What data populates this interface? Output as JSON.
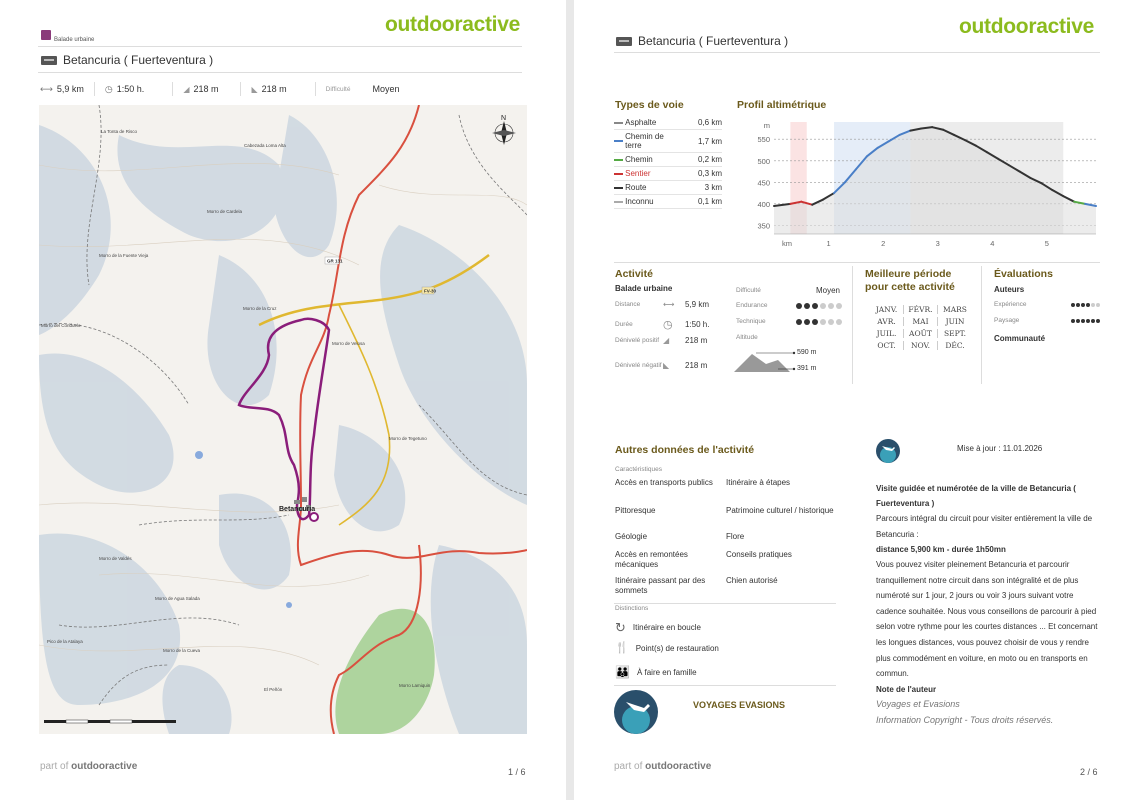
{
  "page1": {
    "category": "Balade urbaine",
    "brand": "outdooractive",
    "title": "Betancuria ( Fuerteventura )",
    "stats": {
      "distance": "5,9 km",
      "duration": "1:50 h.",
      "ascent": "218 m",
      "descent": "218 m",
      "difficulty_label": "Difficulté",
      "difficulty_value": "Moyen"
    },
    "map_labels": {
      "town": "Betancuria",
      "peak1": "La Tonta de Risco",
      "peak2": "Cabezada Loma Alta",
      "peak3": "Morro de Cardela",
      "peak4": "Morro de la Fuente Vieja",
      "peak5": "Morro del Conduelo",
      "peak6": "Morro de la Cruz",
      "peak7": "Morro de Velosa",
      "peak8": "Morro de Tegetuno",
      "peak9": "Morro de Valdés",
      "peak10": "Morro de Agua Salada",
      "peak11": "Morro de la Cueva",
      "peak12": "Pico de la Atalaya",
      "peak13": "El Peñón",
      "peak14": "Morro Lamiquin",
      "road1": "GR 131",
      "road2": "FV-30",
      "north": "N",
      "scale": [
        "0",
        "0.2",
        "0.4",
        "0.6",
        "0.8",
        "1.0"
      ]
    },
    "footer_part_of": "part of",
    "footer_brand": "outdooractive",
    "page_number": "1 / 6"
  },
  "page2": {
    "brand": "outdooractive",
    "title": "Betancuria ( Fuerteventura )",
    "types_de_voie": {
      "title": "Types de voie",
      "rows": [
        {
          "name": "Asphalte",
          "value": "0,6 km",
          "color": "#888888"
        },
        {
          "name": "Chemin de terre",
          "value": "1,7 km",
          "color": "#4a7fc7"
        },
        {
          "name": "Chemin",
          "value": "0,2 km",
          "color": "#55aa44"
        },
        {
          "name": "Sentier",
          "value": "0,3 km",
          "color": "#cc3333"
        },
        {
          "name": "Route",
          "value": "3 km",
          "color": "#333333"
        },
        {
          "name": "Inconnu",
          "value": "0,1 km",
          "color": "#aaaaaa"
        }
      ]
    },
    "profil": {
      "title": "Profil altimétrique",
      "y_unit": "m",
      "y_ticks": [
        "550",
        "500",
        "450",
        "400",
        "350"
      ],
      "x_unit": "km",
      "x_ticks": [
        "1",
        "2",
        "3",
        "4",
        "5"
      ]
    },
    "chart_data": {
      "type": "area",
      "title": "Profil altimétrique",
      "xlabel": "km",
      "ylabel": "m",
      "xlim": [
        0,
        5.9
      ],
      "ylim": [
        330,
        590
      ],
      "x": [
        0,
        0.3,
        0.5,
        0.7,
        0.9,
        1.1,
        1.3,
        1.5,
        1.7,
        1.9,
        2.1,
        2.3,
        2.5,
        2.7,
        2.9,
        3.1,
        3.3,
        3.5,
        3.7,
        3.9,
        4.1,
        4.3,
        4.5,
        4.7,
        4.9,
        5.1,
        5.3,
        5.5,
        5.7,
        5.9
      ],
      "y": [
        395,
        400,
        405,
        398,
        410,
        425,
        450,
        480,
        510,
        530,
        545,
        560,
        570,
        575,
        578,
        572,
        560,
        548,
        535,
        520,
        505,
        490,
        475,
        460,
        448,
        432,
        418,
        405,
        400,
        395
      ]
    },
    "activite": {
      "title": "Activité",
      "type": "Balade urbaine",
      "distance_label": "Distance",
      "distance": "5,9 km",
      "duree_label": "Durée",
      "duree": "1:50 h.",
      "denivele_pos_label": "Dénivelé positif",
      "denivele_pos": "218 m",
      "denivele_neg_label": "Dénivelé négatif",
      "denivele_neg": "218 m",
      "difficulte_label": "Difficulté",
      "difficulte": "Moyen",
      "endurance_label": "Endurance",
      "endurance_level": 3,
      "technique_label": "Technique",
      "technique_level": 3,
      "altitude_label": "Altitude",
      "alt_max": "590 m",
      "alt_min": "391 m"
    },
    "meilleure_periode": {
      "title": "Meilleure période pour cette activité",
      "months": [
        "JANV.",
        "FÉVR.",
        "MARS",
        "AVR.",
        "MAI",
        "JUIN",
        "JUIL.",
        "AOÛT",
        "SEPT.",
        "OCT.",
        "NOV.",
        "DÉC."
      ]
    },
    "evaluations": {
      "title": "Évaluations",
      "auteurs": "Auteurs",
      "experience_label": "Expérience",
      "experience_level": 4,
      "paysage_label": "Paysage",
      "paysage_level": 6,
      "communaute": "Communauté"
    },
    "autres": {
      "title": "Autres données de l'activité",
      "caracteristiques_label": "Caractéristiques",
      "left": [
        "Accès en transports publics",
        "Pittoresque",
        "Géologie",
        "Accès en remontées mécaniques",
        "Itinéraire passant par des sommets"
      ],
      "right": [
        "Itinéraire à étapes",
        "Patrimoine culturel / historique",
        "Flore",
        "Conseils pratiques",
        "Chien autorisé"
      ],
      "distinctions_label": "Distinctions",
      "distinctions": [
        "Itinéraire en boucle",
        "Point(s) de restauration",
        "À faire en famille"
      ],
      "author_name": "VOYAGES EVASIONS"
    },
    "description": {
      "update": "Mise à jour : 11.01.2026",
      "heading": "Visite guidée et numérotée de la ville de Betancuria ( Fuerteventura )",
      "p1": "Parcours intégral du circuit pour visiter entièrement la ville de Betancuria :",
      "p2": "distance 5,900 km - durée 1h50mn",
      "p3": " Vous pouvez visiter pleinement Betancuria et parcourir tranquillement notre circuit dans son intégralité et de plus numéroté sur 1 jour, 2 jours ou voir 3 jours suivant votre cadence souhaitée. Nous vous conseillons de parcourir à pied selon votre rythme pour les courtes distances ... Et concernant les longues distances, vous pouvez choisir de vous y rendre plus commodément en voiture, en moto ou en transports en commun.",
      "note_label": "Note de l'auteur",
      "note_author": "Voyages et Evasions",
      "copyright": "Information Copyright - Tous droits réservés."
    },
    "footer_part_of": "part of",
    "footer_brand": "outdooractive",
    "page_number": "2 / 6"
  }
}
